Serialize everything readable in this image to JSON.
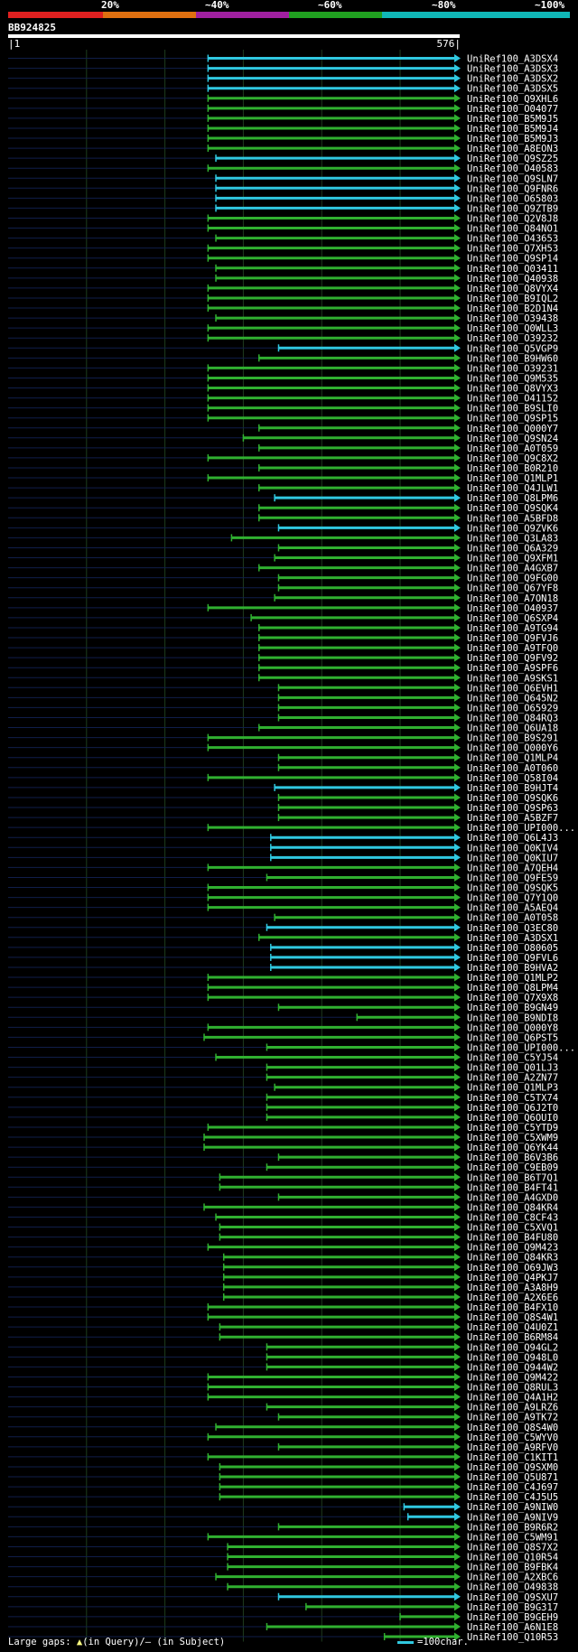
{
  "legend": {
    "ticks": [
      "20%",
      "~40%",
      "~60%",
      "~80%",
      "~100%"
    ],
    "colors": [
      "#e02020",
      "#e07010",
      "#a020a0",
      "#20a020",
      "#10b8b8"
    ]
  },
  "query": {
    "id": "BB924825",
    "start": "1",
    "end": "576"
  },
  "footer": {
    "prefix": "Large gaps: ",
    "query_symbol": "▲",
    "query_text": "(in Query)/",
    "subject_symbol": "–",
    "subject_text": " (in Subject)",
    "scale_text": "=100char."
  },
  "chart_data": {
    "type": "alignment",
    "query_length": 576,
    "series_colors": {
      "high": "#30c8e0",
      "mid": "#30b030"
    },
    "hits": [
      {
        "id": "UniRef100_A3DSX4",
        "start": 255,
        "end": 576,
        "color": "high"
      },
      {
        "id": "UniRef100_A3DSX3",
        "start": 255,
        "end": 576,
        "color": "high"
      },
      {
        "id": "UniRef100_A3DSX2",
        "start": 255,
        "end": 576,
        "color": "high"
      },
      {
        "id": "UniRef100_A3DSX5",
        "start": 255,
        "end": 576,
        "color": "high"
      },
      {
        "id": "UniRef100_Q9XHL6",
        "start": 255,
        "end": 576,
        "color": "mid"
      },
      {
        "id": "UniRef100_O04077",
        "start": 255,
        "end": 576,
        "color": "mid"
      },
      {
        "id": "UniRef100_B5M9J5",
        "start": 255,
        "end": 576,
        "color": "mid"
      },
      {
        "id": "UniRef100_B5M9J4",
        "start": 255,
        "end": 576,
        "color": "mid"
      },
      {
        "id": "UniRef100_B5M9J3",
        "start": 255,
        "end": 576,
        "color": "mid"
      },
      {
        "id": "UniRef100_A8EON3",
        "start": 255,
        "end": 576,
        "color": "mid"
      },
      {
        "id": "UniRef100_Q9SZ25",
        "start": 265,
        "end": 576,
        "color": "high"
      },
      {
        "id": "UniRef100_O40583",
        "start": 255,
        "end": 576,
        "color": "mid"
      },
      {
        "id": "UniRef100_Q9SLN7",
        "start": 265,
        "end": 576,
        "color": "high"
      },
      {
        "id": "UniRef100_Q9FNR6",
        "start": 265,
        "end": 576,
        "color": "high"
      },
      {
        "id": "UniRef100_O65803",
        "start": 265,
        "end": 576,
        "color": "high"
      },
      {
        "id": "UniRef100_Q9ZTB9",
        "start": 265,
        "end": 576,
        "color": "high"
      },
      {
        "id": "UniRef100_Q2V8J8",
        "start": 255,
        "end": 576,
        "color": "mid"
      },
      {
        "id": "UniRef100_Q84NO1",
        "start": 255,
        "end": 576,
        "color": "mid"
      },
      {
        "id": "UniRef100_O43653",
        "start": 265,
        "end": 576,
        "color": "mid"
      },
      {
        "id": "UniRef100_Q7XH53",
        "start": 255,
        "end": 576,
        "color": "mid"
      },
      {
        "id": "UniRef100_Q9SP14",
        "start": 255,
        "end": 576,
        "color": "mid"
      },
      {
        "id": "UniRef100_Q03411",
        "start": 265,
        "end": 576,
        "color": "mid"
      },
      {
        "id": "UniRef100_Q40938",
        "start": 265,
        "end": 576,
        "color": "mid"
      },
      {
        "id": "UniRef100_Q8VYX4",
        "start": 255,
        "end": 576,
        "color": "mid"
      },
      {
        "id": "UniRef100_B9IQL2",
        "start": 255,
        "end": 576,
        "color": "mid"
      },
      {
        "id": "UniRef100_B2D1N4",
        "start": 255,
        "end": 576,
        "color": "mid"
      },
      {
        "id": "UniRef100_O39438",
        "start": 265,
        "end": 576,
        "color": "mid"
      },
      {
        "id": "UniRef100_Q0WLL3",
        "start": 255,
        "end": 576,
        "color": "mid"
      },
      {
        "id": "UniRef100_O39232",
        "start": 255,
        "end": 576,
        "color": "mid"
      },
      {
        "id": "UniRef100_Q5VGP9",
        "start": 345,
        "end": 576,
        "color": "high"
      },
      {
        "id": "UniRef100_B9HW60",
        "start": 320,
        "end": 576,
        "color": "mid"
      },
      {
        "id": "UniRef100_O39231",
        "start": 255,
        "end": 576,
        "color": "mid"
      },
      {
        "id": "UniRef100_Q9M535",
        "start": 255,
        "end": 576,
        "color": "mid"
      },
      {
        "id": "UniRef100_Q8VYX3",
        "start": 255,
        "end": 576,
        "color": "mid"
      },
      {
        "id": "UniRef100_O41152",
        "start": 255,
        "end": 576,
        "color": "mid"
      },
      {
        "id": "UniRef100_B9SLI0",
        "start": 255,
        "end": 576,
        "color": "mid"
      },
      {
        "id": "UniRef100_Q9SP15",
        "start": 255,
        "end": 576,
        "color": "mid"
      },
      {
        "id": "UniRef100_Q000Y7",
        "start": 320,
        "end": 576,
        "color": "mid"
      },
      {
        "id": "UniRef100_Q9SN24",
        "start": 300,
        "end": 576,
        "color": "mid"
      },
      {
        "id": "UniRef100_A0T059",
        "start": 320,
        "end": 576,
        "color": "mid"
      },
      {
        "id": "UniRef100_Q9C8X2",
        "start": 255,
        "end": 576,
        "color": "mid"
      },
      {
        "id": "UniRef100_B0R210",
        "start": 320,
        "end": 576,
        "color": "mid"
      },
      {
        "id": "UniRef100_Q1MLP1",
        "start": 255,
        "end": 576,
        "color": "mid"
      },
      {
        "id": "UniRef100_Q4JLW1",
        "start": 320,
        "end": 576,
        "color": "mid"
      },
      {
        "id": "UniRef100_Q8LPM6",
        "start": 340,
        "end": 576,
        "color": "high"
      },
      {
        "id": "UniRef100_Q9SQK4",
        "start": 320,
        "end": 576,
        "color": "mid"
      },
      {
        "id": "UniRef100_A5BFD8",
        "start": 320,
        "end": 576,
        "color": "mid"
      },
      {
        "id": "UniRef100_Q9ZVK6",
        "start": 345,
        "end": 576,
        "color": "high"
      },
      {
        "id": "UniRef100_Q3LA83",
        "start": 285,
        "end": 576,
        "color": "mid"
      },
      {
        "id": "UniRef100_Q6A329",
        "start": 345,
        "end": 576,
        "color": "mid"
      },
      {
        "id": "UniRef100_Q9XFM1",
        "start": 340,
        "end": 576,
        "color": "mid"
      },
      {
        "id": "UniRef100_A4GXB7",
        "start": 320,
        "end": 576,
        "color": "mid"
      },
      {
        "id": "UniRef100_Q9FG00",
        "start": 345,
        "end": 576,
        "color": "mid"
      },
      {
        "id": "UniRef100_Q67YF8",
        "start": 345,
        "end": 576,
        "color": "mid"
      },
      {
        "id": "UniRef100_A7ON18",
        "start": 340,
        "end": 576,
        "color": "mid"
      },
      {
        "id": "UniRef100_O40937",
        "start": 255,
        "end": 576,
        "color": "mid"
      },
      {
        "id": "UniRef100_Q6SXP4",
        "start": 310,
        "end": 576,
        "color": "mid"
      },
      {
        "id": "UniRef100_A9TG94",
        "start": 320,
        "end": 576,
        "color": "mid"
      },
      {
        "id": "UniRef100_Q9FVJ6",
        "start": 320,
        "end": 576,
        "color": "mid"
      },
      {
        "id": "UniRef100_A9TFQ0",
        "start": 320,
        "end": 576,
        "color": "mid"
      },
      {
        "id": "UniRef100_Q9FV92",
        "start": 320,
        "end": 576,
        "color": "mid"
      },
      {
        "id": "UniRef100_A9SPF6",
        "start": 320,
        "end": 576,
        "color": "mid"
      },
      {
        "id": "UniRef100_A9SKS1",
        "start": 320,
        "end": 576,
        "color": "mid"
      },
      {
        "id": "UniRef100_Q6EVH1",
        "start": 345,
        "end": 576,
        "color": "mid"
      },
      {
        "id": "UniRef100_Q645N2",
        "start": 345,
        "end": 576,
        "color": "mid"
      },
      {
        "id": "UniRef100_O65929",
        "start": 345,
        "end": 576,
        "color": "mid"
      },
      {
        "id": "UniRef100_Q84RQ3",
        "start": 345,
        "end": 576,
        "color": "mid"
      },
      {
        "id": "UniRef100_Q6UA18",
        "start": 320,
        "end": 576,
        "color": "mid"
      },
      {
        "id": "UniRef100_B9S291",
        "start": 255,
        "end": 576,
        "color": "mid"
      },
      {
        "id": "UniRef100_Q000Y6",
        "start": 255,
        "end": 576,
        "color": "mid"
      },
      {
        "id": "UniRef100_Q1MLP4",
        "start": 345,
        "end": 576,
        "color": "mid"
      },
      {
        "id": "UniRef100_A0T060",
        "start": 345,
        "end": 576,
        "color": "mid"
      },
      {
        "id": "UniRef100_Q58I04",
        "start": 255,
        "end": 576,
        "color": "mid"
      },
      {
        "id": "UniRef100_B9HJT4",
        "start": 340,
        "end": 576,
        "color": "high"
      },
      {
        "id": "UniRef100_Q9SQK6",
        "start": 345,
        "end": 576,
        "color": "mid"
      },
      {
        "id": "UniRef100_Q9SP63",
        "start": 345,
        "end": 576,
        "color": "mid"
      },
      {
        "id": "UniRef100_A5BZF7",
        "start": 345,
        "end": 576,
        "color": "mid"
      },
      {
        "id": "UniRef100_UPI000...",
        "start": 255,
        "end": 576,
        "color": "mid"
      },
      {
        "id": "UniRef100_Q6L4J3",
        "start": 335,
        "end": 576,
        "color": "high"
      },
      {
        "id": "UniRef100_Q0KIV4",
        "start": 335,
        "end": 576,
        "color": "high"
      },
      {
        "id": "UniRef100_Q0KIU7",
        "start": 335,
        "end": 576,
        "color": "high"
      },
      {
        "id": "UniRef100_A7QEH4",
        "start": 255,
        "end": 576,
        "color": "mid"
      },
      {
        "id": "UniRef100_Q9FE59",
        "start": 330,
        "end": 576,
        "color": "mid"
      },
      {
        "id": "UniRef100_Q9SQK5",
        "start": 255,
        "end": 576,
        "color": "mid"
      },
      {
        "id": "UniRef100_Q7Y1Q0",
        "start": 255,
        "end": 576,
        "color": "mid"
      },
      {
        "id": "UniRef100_A5AEQ4",
        "start": 255,
        "end": 576,
        "color": "mid"
      },
      {
        "id": "UniRef100_A0T058",
        "start": 340,
        "end": 576,
        "color": "mid"
      },
      {
        "id": "UniRef100_Q3EC80",
        "start": 330,
        "end": 576,
        "color": "high"
      },
      {
        "id": "UniRef100_A3DSX1",
        "start": 320,
        "end": 576,
        "color": "mid"
      },
      {
        "id": "UniRef100_O80605",
        "start": 335,
        "end": 576,
        "color": "high"
      },
      {
        "id": "UniRef100_Q9FVL6",
        "start": 335,
        "end": 576,
        "color": "high"
      },
      {
        "id": "UniRef100_B9HVA2",
        "start": 335,
        "end": 576,
        "color": "high"
      },
      {
        "id": "UniRef100_Q1MLP2",
        "start": 255,
        "end": 576,
        "color": "mid"
      },
      {
        "id": "UniRef100_Q8LPM4",
        "start": 255,
        "end": 576,
        "color": "mid"
      },
      {
        "id": "UniRef100_Q7X9X8",
        "start": 255,
        "end": 576,
        "color": "mid"
      },
      {
        "id": "UniRef100_B9GN49",
        "start": 345,
        "end": 576,
        "color": "mid"
      },
      {
        "id": "UniRef100_B9NDI8",
        "start": 445,
        "end": 576,
        "color": "mid"
      },
      {
        "id": "UniRef100_Q000Y8",
        "start": 255,
        "end": 576,
        "color": "mid"
      },
      {
        "id": "UniRef100_Q6PST5",
        "start": 250,
        "end": 576,
        "color": "mid"
      },
      {
        "id": "UniRef100_UPI000...",
        "start": 330,
        "end": 576,
        "color": "mid"
      },
      {
        "id": "UniRef100_C5YJ54",
        "start": 265,
        "end": 576,
        "color": "mid"
      },
      {
        "id": "UniRef100_Q01LJ3",
        "start": 330,
        "end": 576,
        "color": "mid"
      },
      {
        "id": "UniRef100_A2ZN77",
        "start": 330,
        "end": 576,
        "color": "mid"
      },
      {
        "id": "UniRef100_Q1MLP3",
        "start": 340,
        "end": 576,
        "color": "mid"
      },
      {
        "id": "UniRef100_C5TX74",
        "start": 330,
        "end": 576,
        "color": "mid"
      },
      {
        "id": "UniRef100_Q6J2T0",
        "start": 330,
        "end": 576,
        "color": "mid"
      },
      {
        "id": "UniRef100_Q6OUI0",
        "start": 330,
        "end": 576,
        "color": "mid"
      },
      {
        "id": "UniRef100_C5YTD9",
        "start": 255,
        "end": 576,
        "color": "mid"
      },
      {
        "id": "UniRef100_C5XWM9",
        "start": 250,
        "end": 576,
        "color": "mid"
      },
      {
        "id": "UniRef100_Q6YK44",
        "start": 250,
        "end": 576,
        "color": "mid"
      },
      {
        "id": "UniRef100_B6V3B6",
        "start": 345,
        "end": 576,
        "color": "mid"
      },
      {
        "id": "UniRef100_C9EB09",
        "start": 330,
        "end": 576,
        "color": "mid"
      },
      {
        "id": "UniRef100_B6T7Q1",
        "start": 270,
        "end": 576,
        "color": "mid"
      },
      {
        "id": "UniRef100_B4FT41",
        "start": 270,
        "end": 576,
        "color": "mid"
      },
      {
        "id": "UniRef100_A4GXD0",
        "start": 345,
        "end": 576,
        "color": "mid"
      },
      {
        "id": "UniRef100_Q84KR4",
        "start": 250,
        "end": 576,
        "color": "mid"
      },
      {
        "id": "UniRef100_C8CF43",
        "start": 265,
        "end": 576,
        "color": "mid"
      },
      {
        "id": "UniRef100_C5XVQ1",
        "start": 270,
        "end": 576,
        "color": "mid"
      },
      {
        "id": "UniRef100_B4FU80",
        "start": 270,
        "end": 576,
        "color": "mid"
      },
      {
        "id": "UniRef100_Q9M423",
        "start": 255,
        "end": 576,
        "color": "mid"
      },
      {
        "id": "UniRef100_Q84KR3",
        "start": 275,
        "end": 576,
        "color": "mid"
      },
      {
        "id": "UniRef100_O69JW3",
        "start": 275,
        "end": 576,
        "color": "mid"
      },
      {
        "id": "UniRef100_Q4PKJ7",
        "start": 275,
        "end": 576,
        "color": "mid"
      },
      {
        "id": "UniRef100_A3A8H9",
        "start": 275,
        "end": 576,
        "color": "mid"
      },
      {
        "id": "UniRef100_A2X6E6",
        "start": 275,
        "end": 576,
        "color": "mid"
      },
      {
        "id": "UniRef100_B4FX10",
        "start": 255,
        "end": 576,
        "color": "mid"
      },
      {
        "id": "UniRef100_Q8S4W1",
        "start": 255,
        "end": 576,
        "color": "mid"
      },
      {
        "id": "UniRef100_Q4U0Z1",
        "start": 270,
        "end": 576,
        "color": "mid"
      },
      {
        "id": "UniRef100_B6RM84",
        "start": 270,
        "end": 576,
        "color": "mid"
      },
      {
        "id": "UniRef100_Q94GL2",
        "start": 330,
        "end": 576,
        "color": "mid"
      },
      {
        "id": "UniRef100_Q948L0",
        "start": 330,
        "end": 576,
        "color": "mid"
      },
      {
        "id": "UniRef100_Q944W2",
        "start": 330,
        "end": 576,
        "color": "mid"
      },
      {
        "id": "UniRef100_Q9M422",
        "start": 255,
        "end": 576,
        "color": "mid"
      },
      {
        "id": "UniRef100_Q8RUL3",
        "start": 255,
        "end": 576,
        "color": "mid"
      },
      {
        "id": "UniRef100_Q4A1H2",
        "start": 255,
        "end": 576,
        "color": "mid"
      },
      {
        "id": "UniRef100_A9LRZ6",
        "start": 330,
        "end": 576,
        "color": "mid"
      },
      {
        "id": "UniRef100_A9TK72",
        "start": 345,
        "end": 576,
        "color": "mid"
      },
      {
        "id": "UniRef100_Q8S4W0",
        "start": 265,
        "end": 576,
        "color": "mid"
      },
      {
        "id": "UniRef100_C5WYV0",
        "start": 255,
        "end": 576,
        "color": "mid"
      },
      {
        "id": "UniRef100_A9RFV0",
        "start": 345,
        "end": 576,
        "color": "mid"
      },
      {
        "id": "UniRef100_C1KIT1",
        "start": 255,
        "end": 576,
        "color": "mid"
      },
      {
        "id": "UniRef100_Q9SXM0",
        "start": 270,
        "end": 576,
        "color": "mid"
      },
      {
        "id": "UniRef100_Q5U871",
        "start": 270,
        "end": 576,
        "color": "mid"
      },
      {
        "id": "UniRef100_C4J697",
        "start": 270,
        "end": 576,
        "color": "mid"
      },
      {
        "id": "UniRef100_C4J5U5",
        "start": 270,
        "end": 576,
        "color": "mid"
      },
      {
        "id": "UniRef100_A9NIW0",
        "start": 505,
        "end": 576,
        "color": "high"
      },
      {
        "id": "UniRef100_A9NIV9",
        "start": 510,
        "end": 576,
        "color": "high"
      },
      {
        "id": "UniRef100_B9R6R2",
        "start": 345,
        "end": 576,
        "color": "mid"
      },
      {
        "id": "UniRef100_C5WM91",
        "start": 255,
        "end": 576,
        "color": "mid"
      },
      {
        "id": "UniRef100_Q8S7X2",
        "start": 280,
        "end": 576,
        "color": "mid"
      },
      {
        "id": "UniRef100_Q10R54",
        "start": 280,
        "end": 576,
        "color": "mid"
      },
      {
        "id": "UniRef100_B9FBK4",
        "start": 280,
        "end": 576,
        "color": "mid"
      },
      {
        "id": "UniRef100_A2XBC6",
        "start": 265,
        "end": 576,
        "color": "mid"
      },
      {
        "id": "UniRef100_O49838",
        "start": 280,
        "end": 576,
        "color": "mid"
      },
      {
        "id": "UniRef100_Q9SXU7",
        "start": 345,
        "end": 576,
        "color": "high"
      },
      {
        "id": "UniRef100_B9G317",
        "start": 380,
        "end": 576,
        "color": "mid"
      },
      {
        "id": "UniRef100_B9GEH9",
        "start": 500,
        "end": 576,
        "color": "mid"
      },
      {
        "id": "UniRef100_A6N1E8",
        "start": 330,
        "end": 576,
        "color": "mid"
      },
      {
        "id": "UniRef100_Q10R53",
        "start": 480,
        "end": 576,
        "color": "mid"
      }
    ]
  }
}
